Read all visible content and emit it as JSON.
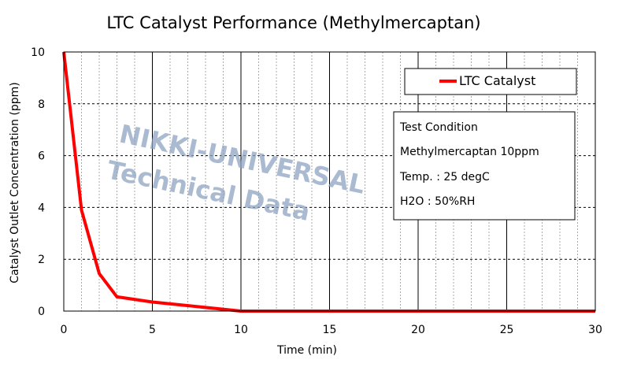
{
  "chart_data": {
    "type": "line",
    "title": "LTC Catalyst Performance (Methylmercaptan)",
    "xlabel": "Time (min)",
    "ylabel": "Catalyst Outlet Concentration  (ppm)",
    "xlim": [
      0,
      30
    ],
    "ylim": [
      0,
      10
    ],
    "x_ticks": [
      "0",
      "5",
      "10",
      "15",
      "20",
      "25",
      "30"
    ],
    "y_ticks": [
      "0",
      "2",
      "4",
      "6",
      "8",
      "10"
    ],
    "grid": true,
    "legend_position": "top-right",
    "series": [
      {
        "name": "LTC Catalyst",
        "color": "#ff0000",
        "x": [
          0,
          1,
          2,
          3,
          5,
          10,
          15,
          20,
          25,
          30
        ],
        "y": [
          10,
          3.9,
          1.45,
          0.55,
          0.35,
          0,
          0,
          0,
          0,
          0
        ]
      }
    ],
    "annotation_lines": [
      "Test Condition",
      "Methylmercaptan 10ppm",
      "Temp. : 25 degC",
      "H2O : 50%RH"
    ],
    "watermark": [
      "NIKKI-UNIVERSAL",
      "Technical Data"
    ]
  }
}
